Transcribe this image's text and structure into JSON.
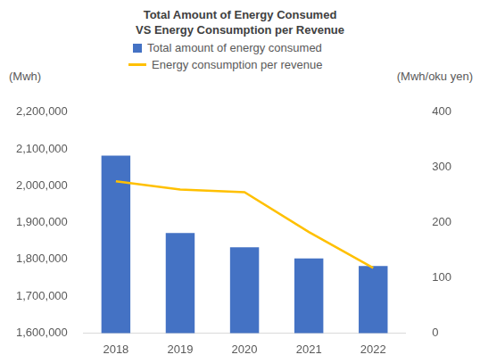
{
  "chart_data": {
    "type": "bar",
    "title": [
      "Total Amount of Energy Consumed",
      "VS Energy Consumption per Revenue"
    ],
    "y_label": "(Mwh)",
    "y2_label": "(Mwh/oku yen)",
    "categories": [
      "2018",
      "2019",
      "2020",
      "2021",
      "2022"
    ],
    "series": [
      {
        "name": "Total amount of energy consumed",
        "type": "bar",
        "color": "#4472c4",
        "values": [
          2082000,
          1872000,
          1833000,
          1803000,
          1782000
        ]
      },
      {
        "name": "Energy consumption per revenue",
        "type": "line",
        "color": "#ffc000",
        "marker": "none",
        "line_style": "solid",
        "axis": "y2",
        "values": [
          275,
          260,
          255,
          183,
          118
        ]
      }
    ],
    "ylim": [
      1600000,
      2200000
    ],
    "yticks": [
      {
        "value": 1600000,
        "label": "1,600,000"
      },
      {
        "value": 1700000,
        "label": "1,700,000"
      },
      {
        "value": 1800000,
        "label": "1,800,000"
      },
      {
        "value": 1900000,
        "label": "1,900,000"
      },
      {
        "value": 2000000,
        "label": "2,000,000"
      },
      {
        "value": 2100000,
        "label": "2,100,000"
      },
      {
        "value": 2200000,
        "label": "2,200,000"
      }
    ],
    "y2lim": [
      0,
      400
    ],
    "y2ticks": [
      0,
      100,
      200,
      300,
      400
    ],
    "grid": false,
    "legend": "top"
  }
}
